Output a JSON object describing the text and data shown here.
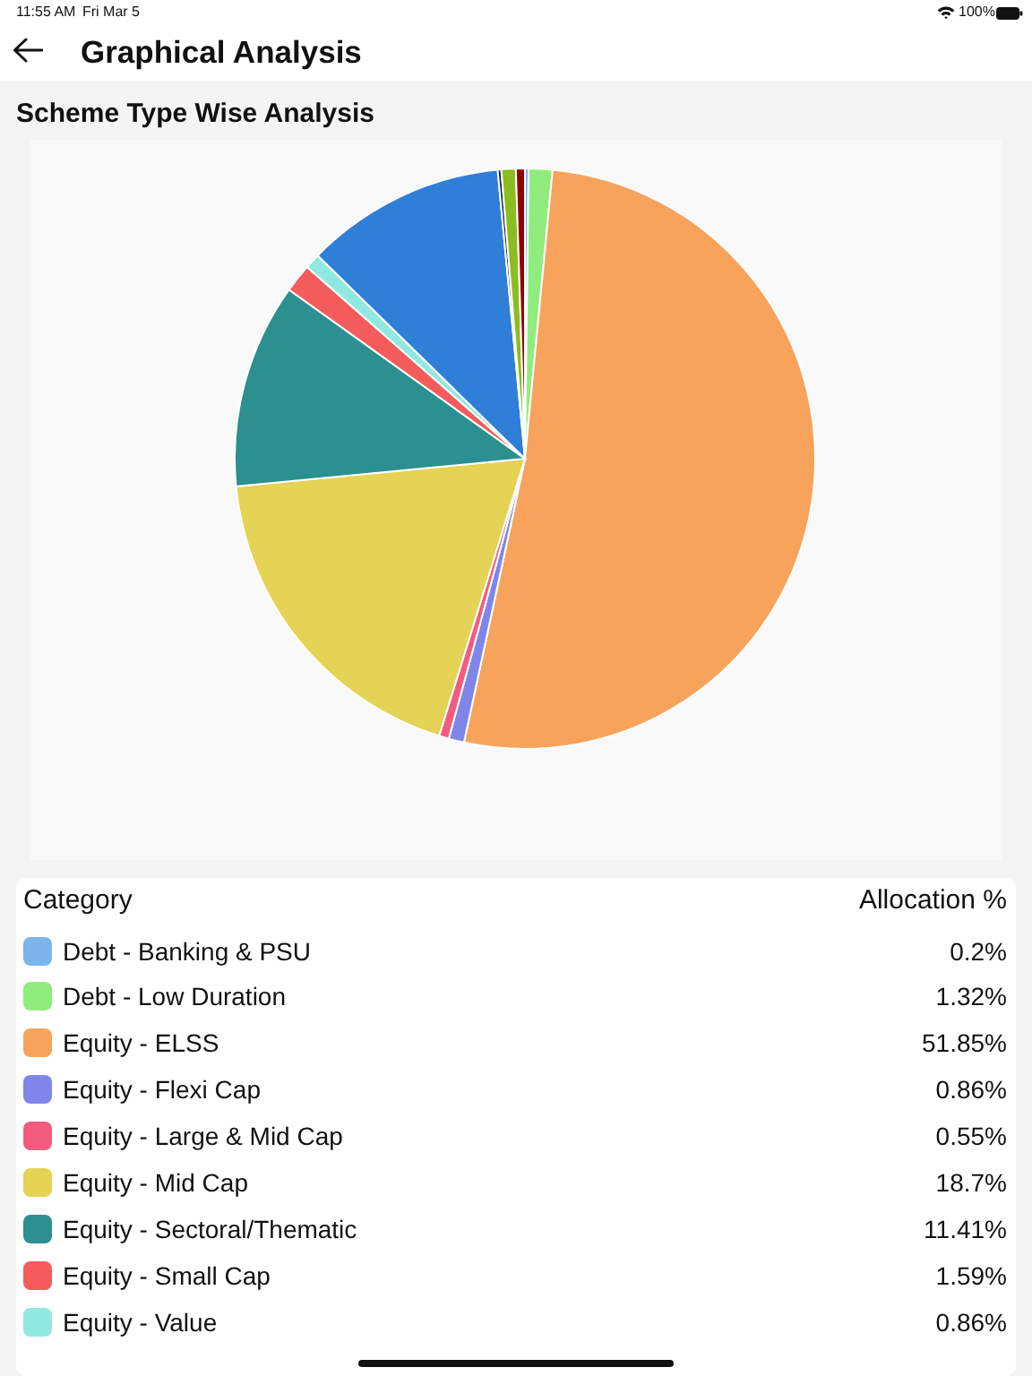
{
  "chart_data": {
    "type": "pie",
    "title": "Scheme Type Wise Analysis",
    "legend_title": "Category",
    "annotations": [
      "11:55 AM",
      "Fri Mar 5",
      "100%",
      "Graphical Analysis",
      "Allocation %"
    ],
    "categories": [
      "Debt - Banking & PSU",
      "Debt - Low Duration",
      "Equity - ELSS",
      "Equity - Flexi Cap",
      "Equity - Large & Mid Cap",
      "Equity - Mid Cap",
      "Equity - Sectoral/Thematic",
      "Equity - Small Cap",
      "Equity - Value",
      null,
      null,
      null,
      null
    ],
    "values": [
      0.2,
      1.32,
      51.85,
      0.86,
      0.55,
      18.7,
      11.41,
      1.59,
      0.86,
      11.16,
      0.2,
      0.8,
      0.5
    ],
    "colors": [
      "#7cb5ec",
      "#90ed7d",
      "#f7a35c",
      "#8085e9",
      "#f15c80",
      "#e4d354",
      "#2b908f",
      "#f45b5b",
      "#91e8e1",
      "#2f7ed8",
      "#0d233a",
      "#8bbc21",
      "#910000"
    ],
    "value_labels": [
      "0.2%",
      "1.32%",
      "51.85%",
      "0.86%",
      "0.55%",
      "18.7%",
      "11.41%",
      "1.59%",
      "0.86%",
      null,
      null,
      null,
      null
    ],
    "legend": "bottom"
  }
}
